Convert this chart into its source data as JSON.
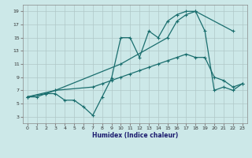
{
  "xlabel": "Humidex (Indice chaleur)",
  "bg_color": "#cce8e8",
  "grid_color": "#b0c8c8",
  "line_color": "#1a6e6e",
  "xlim": [
    -0.5,
    23.5
  ],
  "ylim": [
    2,
    20
  ],
  "xticks": [
    0,
    1,
    2,
    3,
    4,
    5,
    6,
    7,
    8,
    9,
    10,
    11,
    12,
    13,
    14,
    15,
    16,
    17,
    18,
    19,
    20,
    21,
    22,
    23
  ],
  "yticks": [
    3,
    5,
    7,
    9,
    11,
    13,
    15,
    17,
    19
  ],
  "line1_x": [
    0,
    1,
    2,
    3,
    4,
    5,
    6,
    7,
    8,
    9,
    10,
    11,
    12,
    13,
    14,
    15,
    16,
    17,
    18,
    19,
    20,
    21,
    22,
    23
  ],
  "line1_y": [
    6,
    6,
    6.5,
    6.5,
    5.5,
    5.5,
    4.5,
    3.2,
    6,
    8.8,
    15,
    15,
    12,
    16,
    15,
    17.5,
    18.5,
    19,
    19,
    16,
    7,
    7.5,
    7,
    8
  ],
  "line2_x": [
    0,
    2,
    3,
    7,
    8,
    9,
    10,
    11,
    12,
    13,
    14,
    15,
    16,
    17,
    18,
    19,
    20,
    21,
    22,
    23
  ],
  "line2_y": [
    6,
    6.5,
    7,
    7.5,
    8,
    8.5,
    9,
    9.5,
    10,
    10.5,
    11,
    11.5,
    12,
    12.5,
    12,
    12,
    9,
    8.5,
    7.5,
    8
  ],
  "line3_x": [
    0,
    3,
    10,
    15,
    16,
    17,
    18,
    22
  ],
  "line3_y": [
    6,
    7,
    11,
    15,
    17.5,
    18.5,
    19,
    16
  ]
}
